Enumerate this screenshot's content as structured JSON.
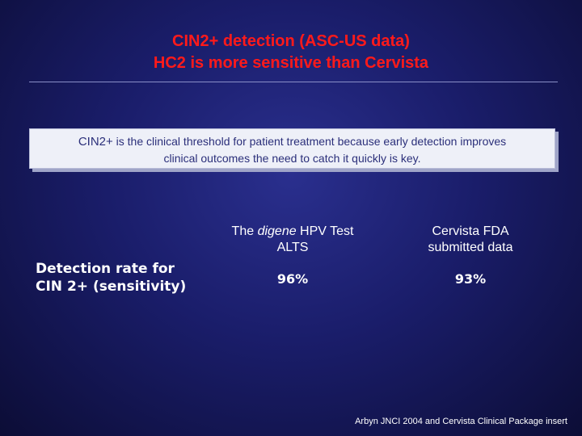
{
  "slide": {
    "title_line1": "CIN2+ detection (ASC-US data)",
    "title_line2": "HC2 is more sensitive than Cervista",
    "callout_prefix": "CIN2+",
    "callout_line1_rest": " is the clinical threshold for patient treatment because early detection improves",
    "callout_line2": "clinical outcomes the need to catch it quickly is key.",
    "table": {
      "col1_head_pre": "The ",
      "col1_head_italic": "digene",
      "col1_head_post": " HPV Test",
      "col1_head_line2": "ALTS",
      "col2_head_line1": "Cervista FDA",
      "col2_head_line2": "submitted data",
      "row_label_line1": "Detection rate for",
      "row_label_line2": "CIN 2+ (sensitivity)",
      "col1_value": "96%",
      "col2_value": "93%"
    },
    "footer": "Arbyn JNCI 2004 and Cervista Clinical Package insert"
  }
}
